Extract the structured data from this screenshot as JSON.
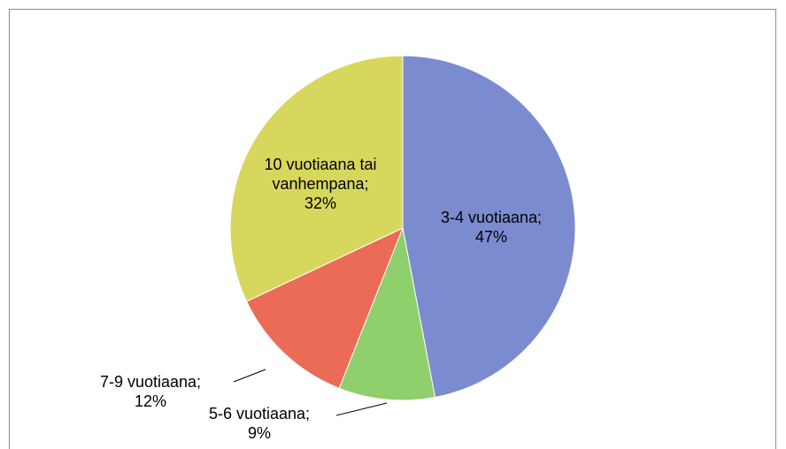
{
  "chart_data": {
    "type": "pie",
    "values": [
      47,
      9,
      12,
      32
    ],
    "value_labels": [
      "3-4 vuotiaana; 47%",
      "5-6 vuotiaana; 9%",
      "7-9 vuotiaana; 12%",
      "10 vuotiaana tai vanhempana; 32%"
    ],
    "colors": [
      "#7b8bd0",
      "#8fcf6c",
      "#ec6b57",
      "#d7d75e"
    ]
  }
}
